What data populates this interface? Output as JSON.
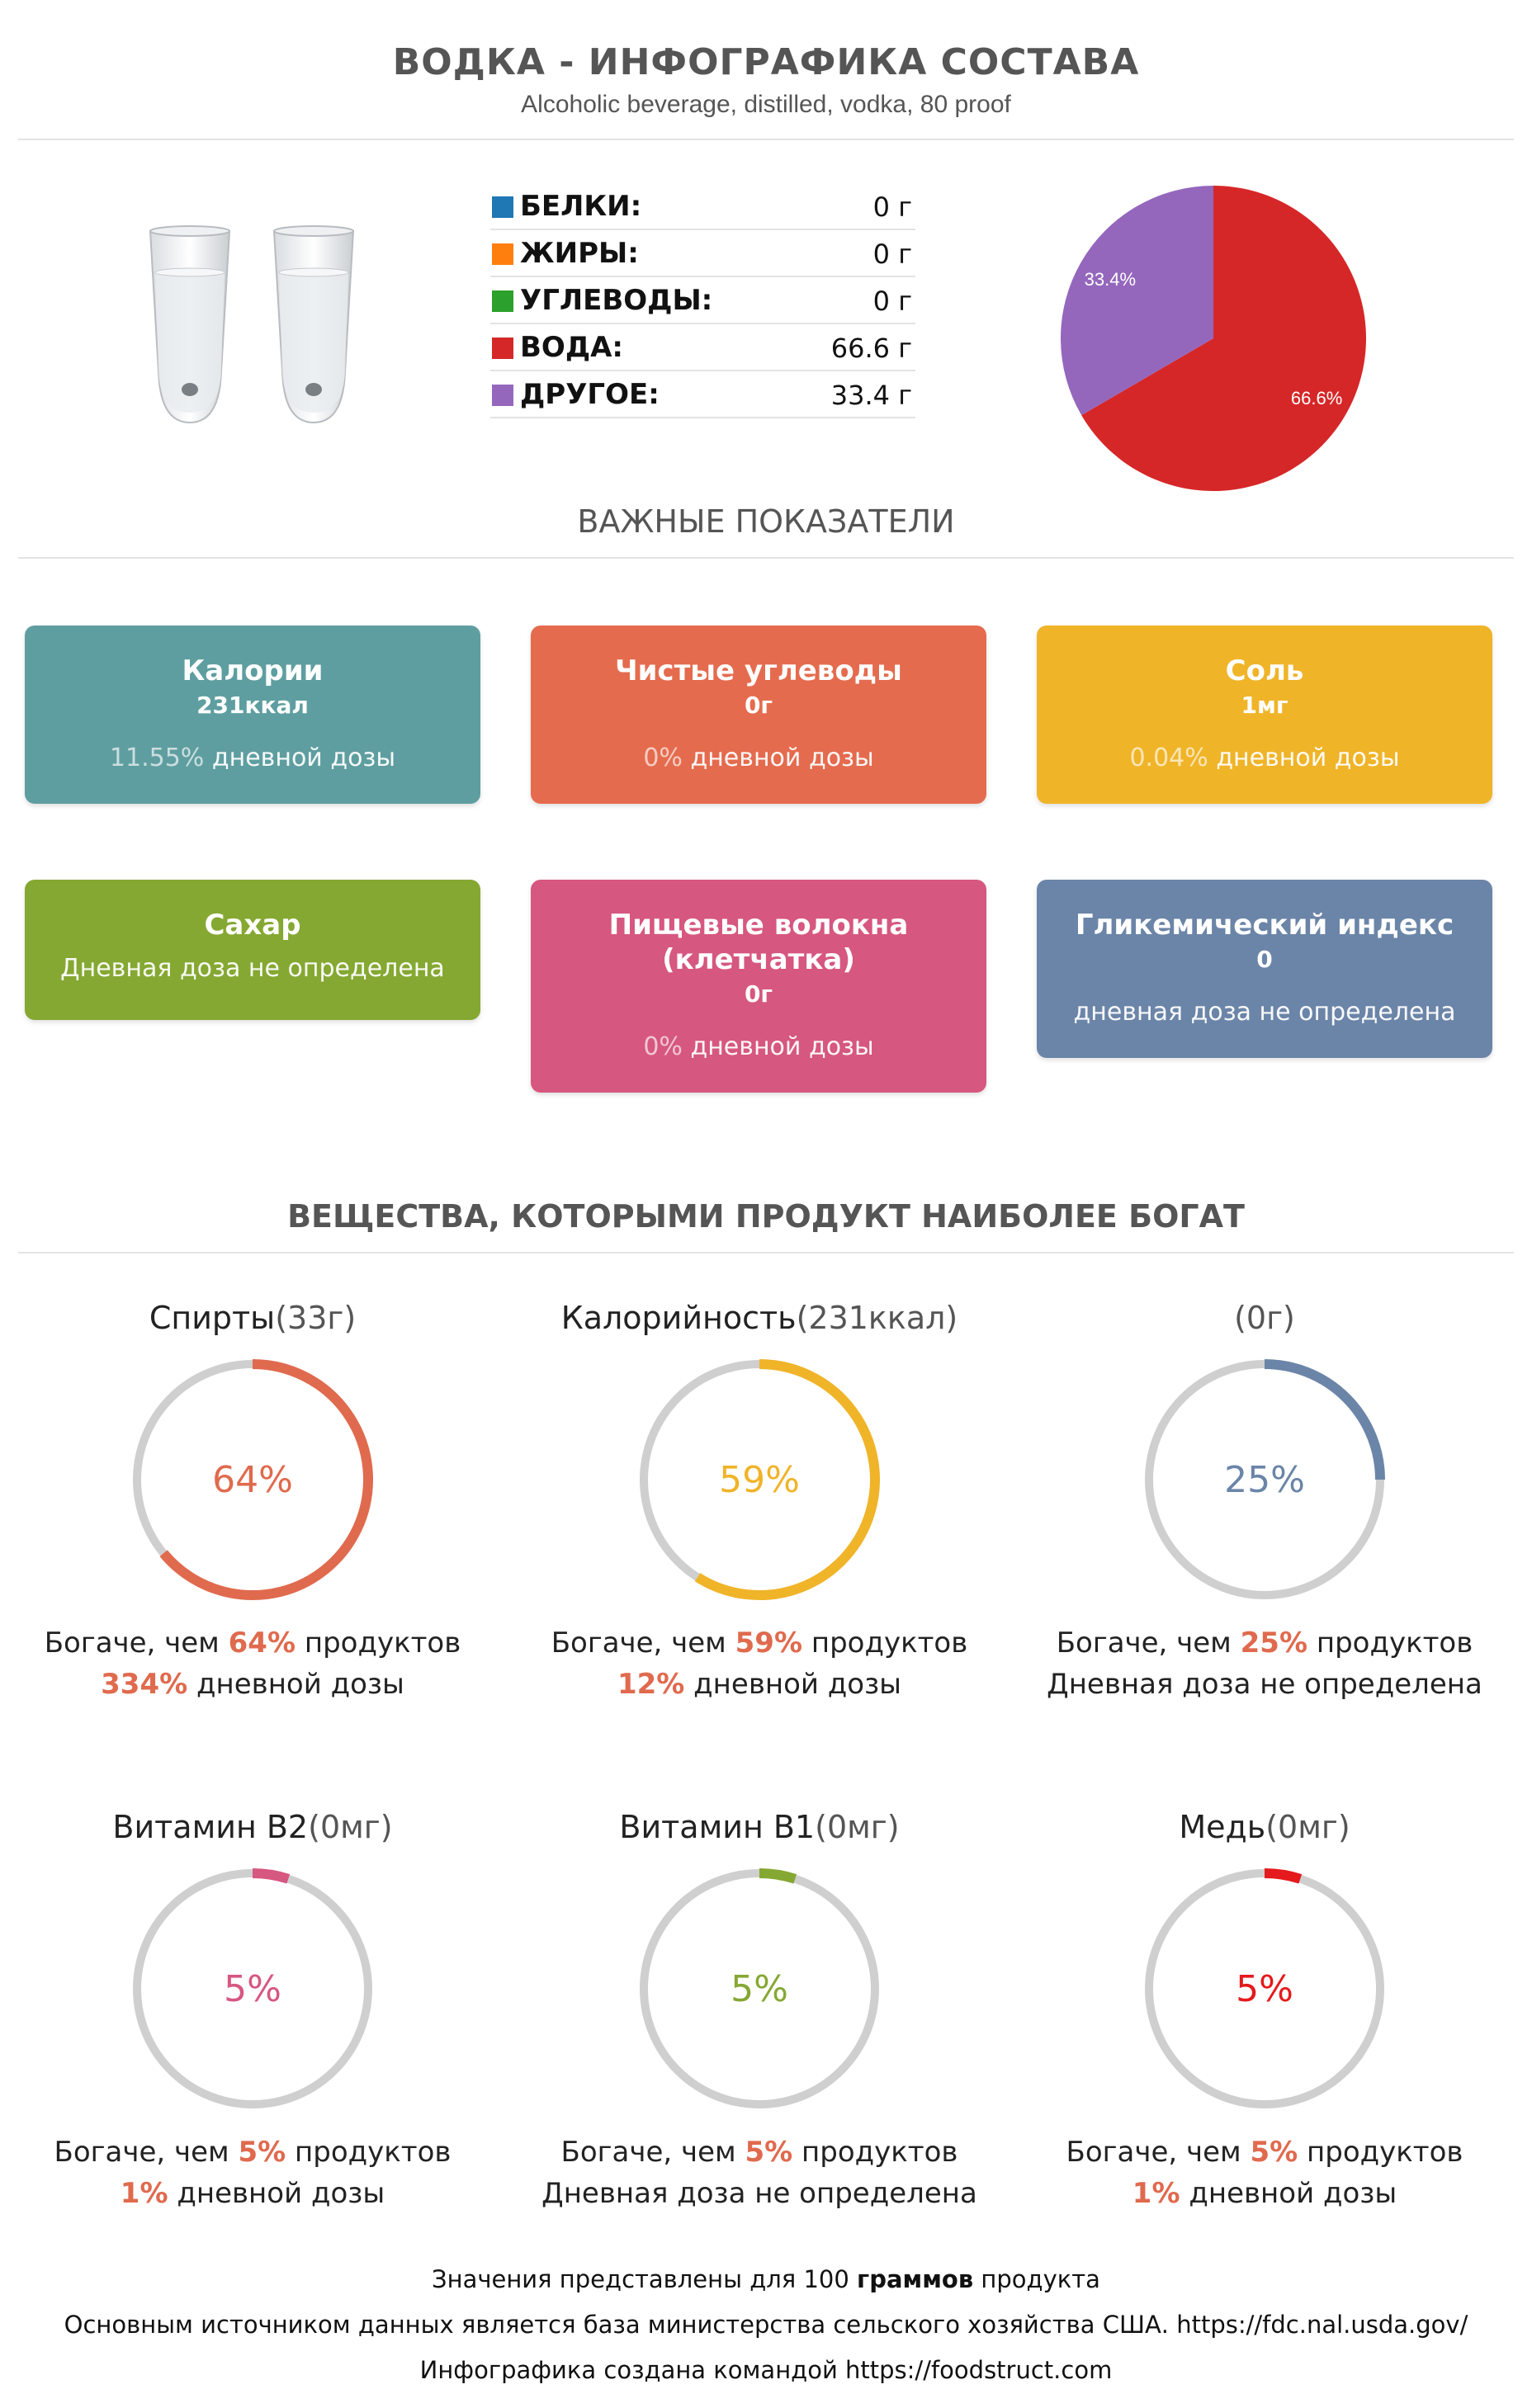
{
  "header": {
    "title": "ВОДКА - ИНФОГРАФИКА СОСТАВА",
    "subtitle": "Alcoholic beverage, distilled, vodka, 80 proof"
  },
  "image": {
    "icon": "two-shot-glasses-icon"
  },
  "macros": [
    {
      "name": "БЕЛКИ:",
      "value": "0 г",
      "color": "#1f77b4"
    },
    {
      "name": "ЖИРЫ:",
      "value": "0 г",
      "color": "#ff7f0e"
    },
    {
      "name": "УГЛЕВОДЫ:",
      "value": "0 г",
      "color": "#2ca02c"
    },
    {
      "name": "ВОДА:",
      "value": "66.6 г",
      "color": "#d62728"
    },
    {
      "name": "ДРУГОЕ:",
      "value": "33.4 г",
      "color": "#9467bd"
    }
  ],
  "chart_data": {
    "type": "pie",
    "slices": [
      {
        "label": "ВОДА",
        "value": 66.6,
        "display": "66.6%",
        "color": "#d62728"
      },
      {
        "label": "ДРУГОЕ",
        "value": 33.4,
        "display": "33.4%",
        "color": "#9467bd"
      }
    ]
  },
  "indicators": {
    "heading": "ВАЖНЫЕ ПОКАЗАТЕЛИ",
    "cards": [
      {
        "title": "Калории",
        "value": "231ккал",
        "daily_pct": "11.55%",
        "daily_text": "дневной дозы",
        "color": "#5f9ea0"
      },
      {
        "title": "Чистые углеводы",
        "value": "0г",
        "daily_pct": "0%",
        "daily_text": "дневной дозы",
        "color": "#e56b4e"
      },
      {
        "title": "Соль",
        "value": "1мг",
        "daily_pct": "0.04%",
        "daily_text": "дневной дозы",
        "color": "#f0b429"
      },
      {
        "title": "Сахар",
        "value": "",
        "daily_pct": "",
        "daily_text": "Дневная доза не определена",
        "color": "#85a832"
      },
      {
        "title": "Пищевые волокна (клетчатка)",
        "value": "0г",
        "daily_pct": "0%",
        "daily_text": "дневной дозы",
        "color": "#d65780"
      },
      {
        "title": "Гликемический индекс",
        "value": "0",
        "daily_pct": "",
        "daily_text": "дневная доза не определена",
        "color": "#6b85a8"
      }
    ]
  },
  "rich": {
    "heading": "ВЕЩЕСТВА, КОТОРЫМИ ПРОДУКТ НАИБОЛЕЕ БОГАТ",
    "items": [
      {
        "name": "Спирты",
        "amount": "(33г)",
        "percent": 64,
        "percent_label": "64%",
        "color": "#e06a4e",
        "richer_prefix": "Богаче, чем ",
        "richer_pct": "64%",
        "richer_suffix": " продуктов",
        "daily_pct": "334%",
        "daily_text": " дневной дозы"
      },
      {
        "name": "Калорийность",
        "amount": "(231ккал)",
        "percent": 59,
        "percent_label": "59%",
        "color": "#f0b429",
        "richer_prefix": "Богаче, чем ",
        "richer_pct": "59%",
        "richer_suffix": " продуктов",
        "daily_pct": "12%",
        "daily_text": " дневной дозы"
      },
      {
        "name": "",
        "amount": "(0г)",
        "percent": 25,
        "percent_label": "25%",
        "color": "#6b85a8",
        "richer_prefix": "Богаче, чем ",
        "richer_pct": "25%",
        "richer_suffix": " продуктов",
        "daily_pct": "",
        "daily_text": "Дневная доза не определена"
      },
      {
        "name": "Витамин B2",
        "amount": "(0мг)",
        "percent": 5,
        "percent_label": "5%",
        "color": "#d65780",
        "richer_prefix": "Богаче, чем ",
        "richer_pct": "5%",
        "richer_suffix": " продуктов",
        "daily_pct": "1%",
        "daily_text": " дневной дозы"
      },
      {
        "name": "Витамин B1",
        "amount": "(0мг)",
        "percent": 5,
        "percent_label": "5%",
        "color": "#85a832",
        "richer_prefix": "Богаче, чем ",
        "richer_pct": "5%",
        "richer_suffix": " продуктов",
        "daily_pct": "",
        "daily_text": "Дневная доза не определена"
      },
      {
        "name": "Медь",
        "amount": "(0мг)",
        "percent": 5,
        "percent_label": "5%",
        "color": "#e41a1c",
        "richer_prefix": "Богаче, чем ",
        "richer_pct": "5%",
        "richer_suffix": " продуктов",
        "daily_pct": "1%",
        "daily_text": " дневной дозы"
      }
    ]
  },
  "footer": {
    "line1_prefix": "Значения представлены для 100 ",
    "line1_bold": "граммов",
    "line1_suffix": " продукта",
    "line2": "Основным источником данных является база министерства сельского хозяйства США. https://fdc.nal.usda.gov/",
    "line3": "Инфографика создана командой https://foodstruct.com"
  }
}
